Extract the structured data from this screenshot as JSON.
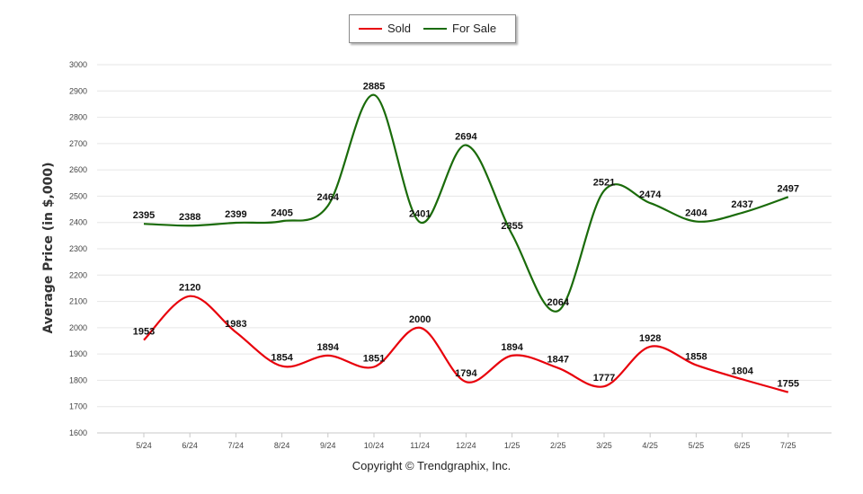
{
  "chart_data": {
    "type": "line",
    "categories": [
      "5/24",
      "6/24",
      "7/24",
      "8/24",
      "9/24",
      "10/24",
      "11/24",
      "12/24",
      "1/25",
      "2/25",
      "3/25",
      "4/25",
      "5/25",
      "6/25",
      "7/25"
    ],
    "series": [
      {
        "name": "Sold",
        "color": "#e8000b",
        "values": [
          1953,
          2120,
          1983,
          1854,
          1894,
          1851,
          2000,
          1794,
          1894,
          1847,
          1777,
          1928,
          1858,
          1804,
          1755
        ]
      },
      {
        "name": "For Sale",
        "color": "#1a6b0a",
        "values": [
          2395,
          2388,
          2399,
          2405,
          2464,
          2885,
          2401,
          2694,
          2355,
          2064,
          2521,
          2474,
          2404,
          2437,
          2497
        ]
      }
    ],
    "ylabel": "Average Price (in $,000)",
    "ylim": [
      1600,
      3000
    ],
    "yticks": [
      1600,
      1700,
      1800,
      1900,
      2000,
      2100,
      2200,
      2300,
      2400,
      2500,
      2600,
      2700,
      2800,
      2900,
      3000
    ],
    "grid": true,
    "legend_position": "top-center"
  },
  "copyright": "Copyright © Trendgraphix, Inc."
}
